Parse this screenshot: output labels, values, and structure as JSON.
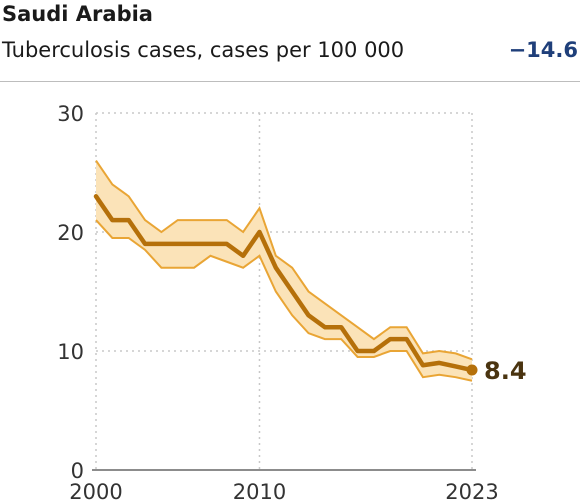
{
  "header": {
    "title": "Saudi Arabia",
    "subtitle": "Tuberculosis cases, cases per 100 000",
    "change": "−14.6"
  },
  "colors": {
    "line": "#b5700a",
    "band_fill": "#fbe3b8",
    "band_edge": "#e9a535",
    "grid": "#c8c8c8",
    "change_text": "#1f3f7a"
  },
  "chart_data": {
    "type": "line",
    "title": "Tuberculosis cases, cases per 100 000",
    "xlabel": "",
    "ylabel": "",
    "xlim": [
      2000,
      2023
    ],
    "ylim": [
      0,
      30
    ],
    "x_ticks": [
      "2000",
      "2010",
      "2023"
    ],
    "y_ticks": [
      "0",
      "10",
      "20",
      "30"
    ],
    "grid": true,
    "series": [
      {
        "x": [
          2000,
          2001,
          2002,
          2003,
          2004,
          2005,
          2006,
          2007,
          2008,
          2009,
          2010,
          2011,
          2012,
          2013,
          2014,
          2015,
          2016,
          2017,
          2018,
          2019,
          2020,
          2021,
          2022,
          2023
        ],
        "values": [
          23,
          21,
          21,
          19,
          19,
          19,
          19,
          19,
          19,
          18,
          20,
          17,
          15,
          13,
          12,
          12,
          10,
          10,
          11,
          11,
          8.8,
          9,
          8.7,
          8.4
        ],
        "lower": [
          21,
          19.5,
          19.5,
          18.5,
          17,
          17,
          17,
          18,
          17.5,
          17,
          18,
          15,
          13,
          11.5,
          11,
          11,
          9.5,
          9.5,
          10,
          10,
          7.8,
          8,
          7.8,
          7.5
        ],
        "upper": [
          26,
          24,
          23,
          21,
          20,
          21,
          21,
          21,
          21,
          20,
          22,
          18,
          17,
          15,
          14,
          13,
          12,
          11,
          12,
          12,
          9.8,
          10,
          9.8,
          9.3
        ]
      }
    ],
    "end_label": "8.4"
  }
}
